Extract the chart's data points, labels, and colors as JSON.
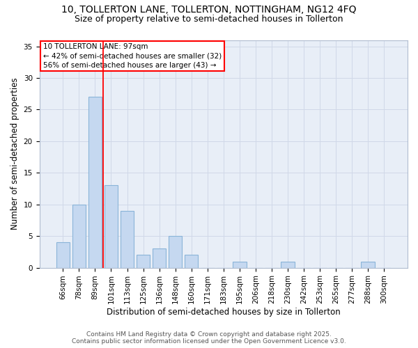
{
  "title1": "10, TOLLERTON LANE, TOLLERTON, NOTTINGHAM, NG12 4FQ",
  "title2": "Size of property relative to semi-detached houses in Tollerton",
  "categories": [
    "66sqm",
    "78sqm",
    "89sqm",
    "101sqm",
    "113sqm",
    "125sqm",
    "136sqm",
    "148sqm",
    "160sqm",
    "171sqm",
    "183sqm",
    "195sqm",
    "206sqm",
    "218sqm",
    "230sqm",
    "242sqm",
    "253sqm",
    "265sqm",
    "277sqm",
    "288sqm",
    "300sqm"
  ],
  "values": [
    4,
    10,
    27,
    13,
    9,
    2,
    3,
    5,
    2,
    0,
    0,
    1,
    0,
    0,
    1,
    0,
    0,
    0,
    0,
    1,
    0
  ],
  "bar_color": "#c5d8f0",
  "bar_edge_color": "#8ab4d8",
  "xlabel": "Distribution of semi-detached houses by size in Tollerton",
  "ylabel": "Number of semi-detached properties",
  "ylim": [
    0,
    36
  ],
  "yticks": [
    0,
    5,
    10,
    15,
    20,
    25,
    30,
    35
  ],
  "vline_x_index": 2.5,
  "annotation_line1": "10 TOLLERTON LANE: 97sqm",
  "annotation_line2": "← 42% of semi-detached houses are smaller (32)",
  "annotation_line3": "56% of semi-detached houses are larger (43) →",
  "footer1": "Contains HM Land Registry data © Crown copyright and database right 2025.",
  "footer2": "Contains public sector information licensed under the Open Government Licence v3.0.",
  "fig_bg_color": "#ffffff",
  "plot_bg_color": "#e8eef7",
  "grid_color": "#d0d8e8",
  "title_fontsize": 10,
  "subtitle_fontsize": 9,
  "axis_label_fontsize": 8.5,
  "tick_fontsize": 7.5,
  "annotation_fontsize": 7.5,
  "footer_fontsize": 6.5
}
